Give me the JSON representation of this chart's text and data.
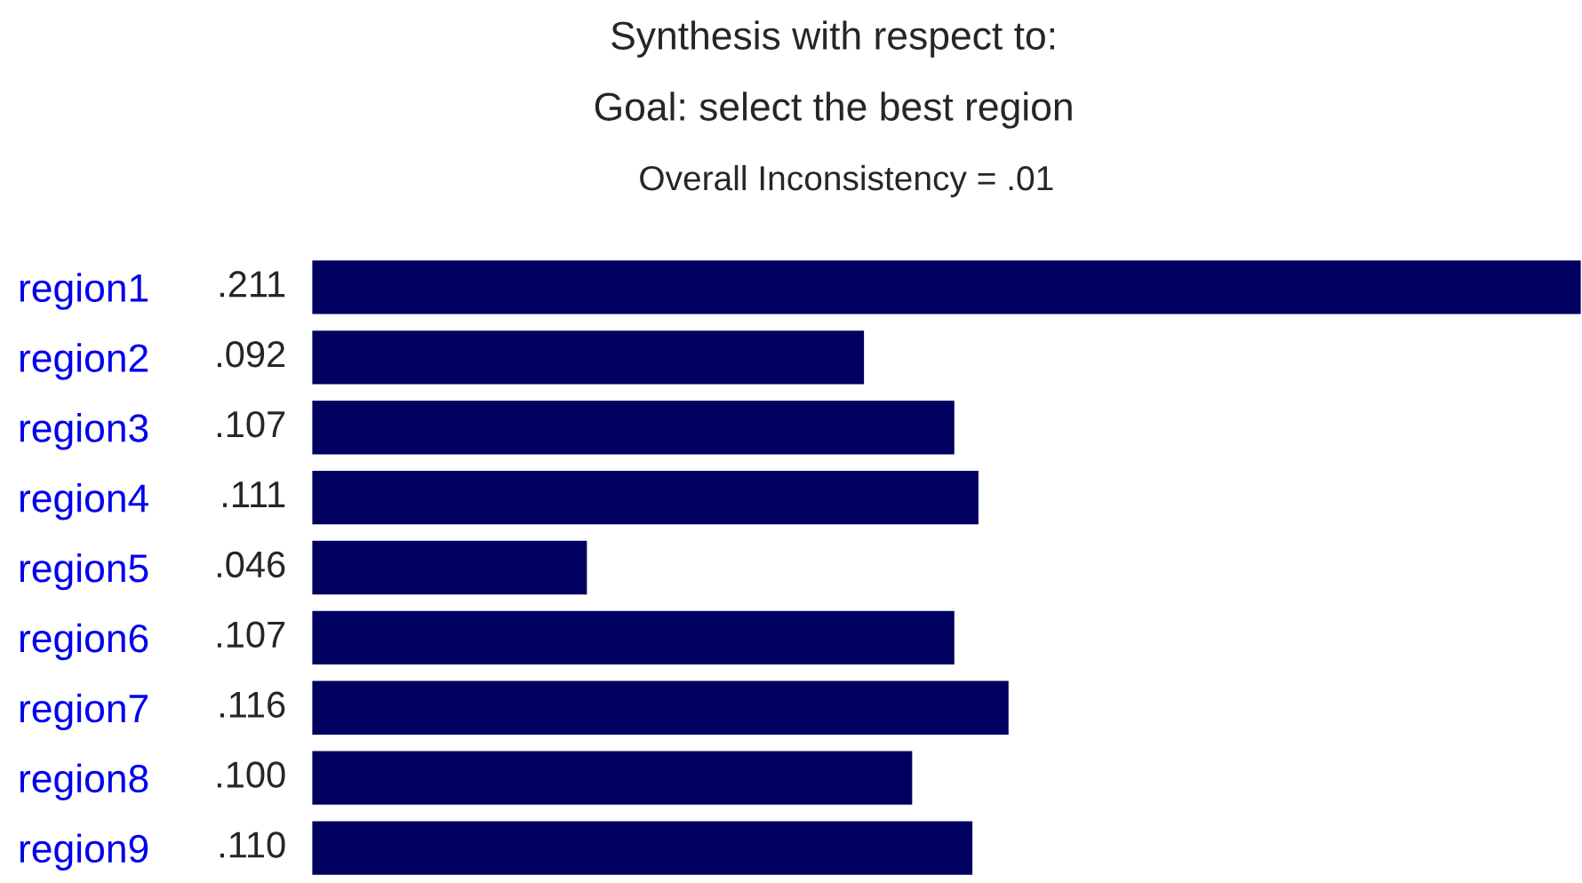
{
  "chart_data": {
    "type": "bar",
    "orientation": "horizontal",
    "title": "Synthesis with respect to:",
    "subtitle": "Goal: select the best region",
    "annotations": [
      "Overall Inconsistency = .01"
    ],
    "categories": [
      "region1",
      "region2",
      "region3",
      "region4",
      "region5",
      "region6",
      "region7",
      "region8",
      "region9"
    ],
    "values": [
      0.211,
      0.092,
      0.107,
      0.111,
      0.046,
      0.107,
      0.116,
      0.1,
      0.11
    ],
    "value_labels": [
      ".211",
      ".092",
      ".107",
      ".111",
      ".046",
      ".107",
      ".116",
      ".100",
      ".110"
    ],
    "color": "#000060",
    "grid": false,
    "legend": false
  }
}
